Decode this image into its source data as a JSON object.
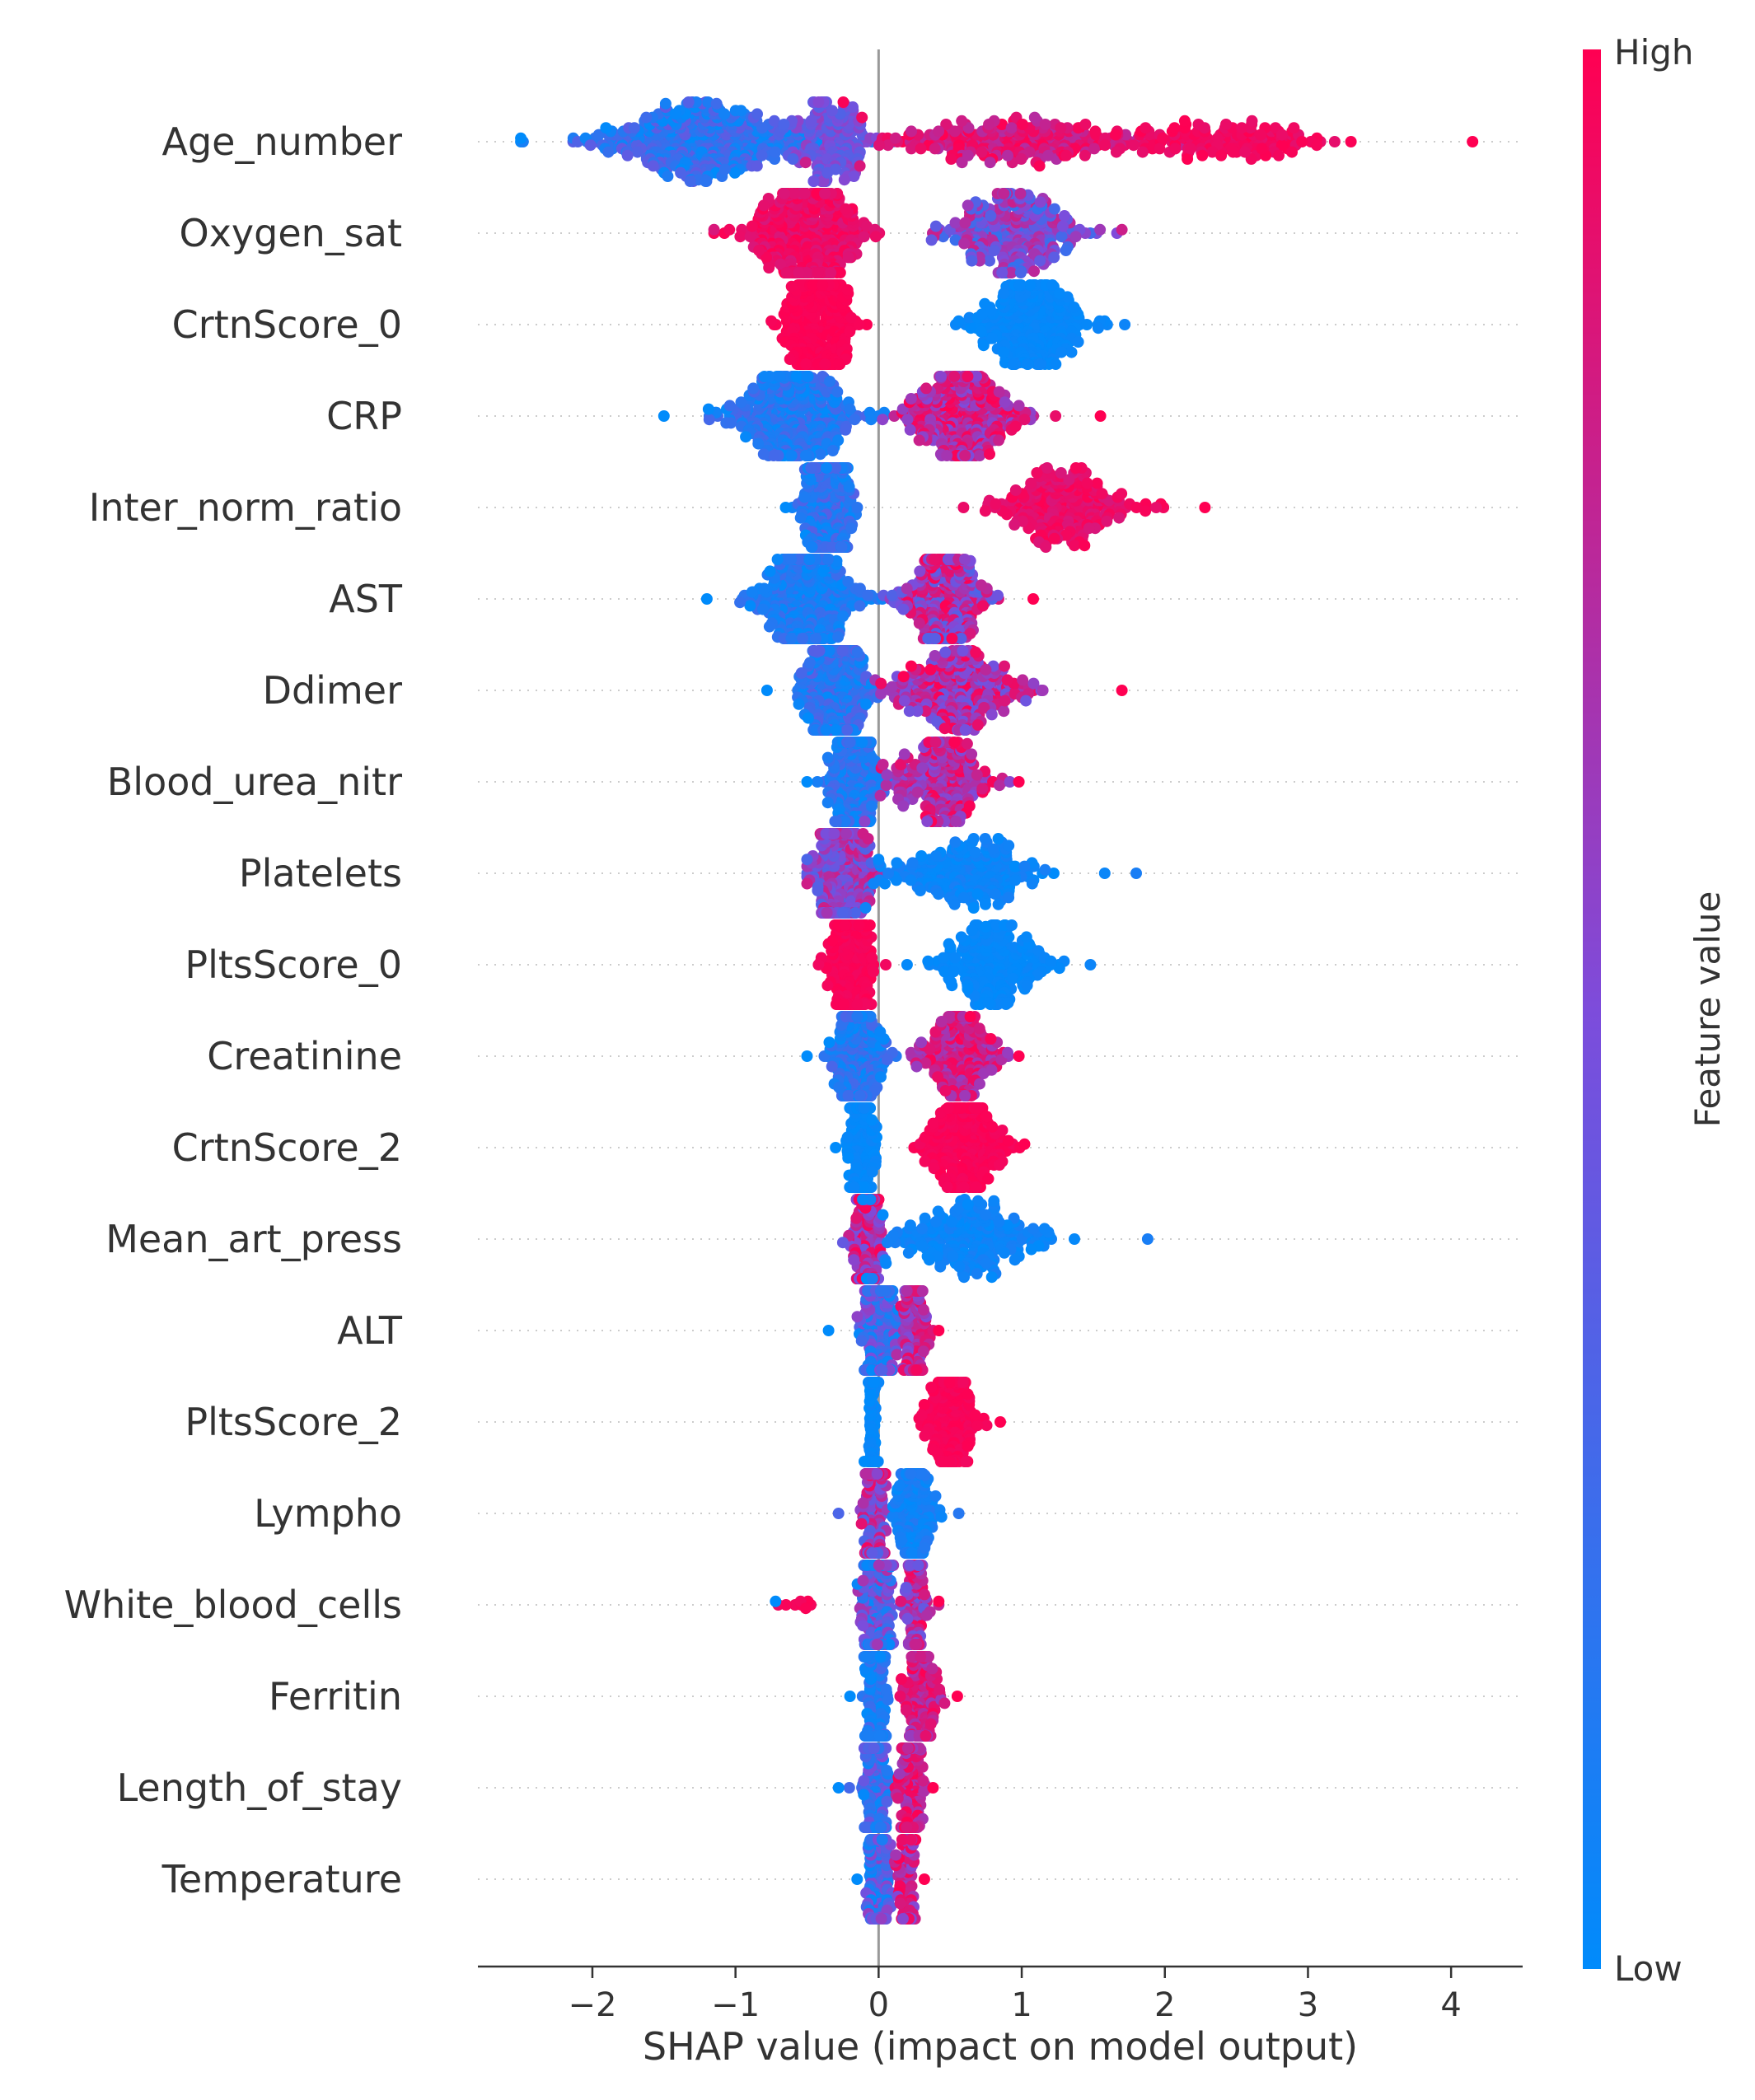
{
  "chart_data": {
    "type": "scatter",
    "subtype": "shap_beeswarm",
    "title": "",
    "xlabel": "SHAP value (impact on model output)",
    "ylabel": "",
    "xlim": [
      -2.8,
      4.5
    ],
    "xticks": [
      {
        "value": -2,
        "label": "−2"
      },
      {
        "value": -1,
        "label": "−1"
      },
      {
        "value": 0,
        "label": "0"
      },
      {
        "value": 1,
        "label": "1"
      },
      {
        "value": 2,
        "label": "2"
      },
      {
        "value": 3,
        "label": "3"
      },
      {
        "value": 4,
        "label": "4"
      }
    ],
    "colorbar": {
      "title": "Feature value",
      "high_label": "High",
      "low_label": "Low",
      "high_color": "#ff0052",
      "low_color": "#008bfb"
    },
    "features": [
      {
        "name": "Age_number",
        "min": -2.5,
        "max": 4.15,
        "clusters": [
          {
            "center": -1.2,
            "spread": 0.7,
            "count": 420,
            "value_low": 0.0,
            "value_high": 0.4
          },
          {
            "center": -0.35,
            "spread": 0.25,
            "count": 180,
            "value_low": 0.3,
            "value_high": 0.6
          },
          {
            "center": 0.9,
            "spread": 0.9,
            "count": 260,
            "value_low": 0.7,
            "value_high": 1.0
          },
          {
            "center": 2.4,
            "spread": 0.7,
            "count": 160,
            "value_low": 0.9,
            "value_high": 1.0
          }
        ]
      },
      {
        "name": "Oxygen_sat",
        "min": -1.15,
        "max": 1.7,
        "clusters": [
          {
            "center": -0.5,
            "spread": 0.35,
            "count": 420,
            "value_low": 0.85,
            "value_high": 1.0
          },
          {
            "center": 0.95,
            "spread": 0.4,
            "count": 300,
            "value_low": 0.2,
            "value_high": 0.8
          }
        ]
      },
      {
        "name": "CrtnScore_0",
        "min": -0.75,
        "max": 1.72,
        "clusters": [
          {
            "center": -0.42,
            "spread": 0.18,
            "count": 480,
            "value_low": 0.97,
            "value_high": 1.0
          },
          {
            "center": 1.05,
            "spread": 0.35,
            "count": 300,
            "value_low": 0.0,
            "value_high": 0.05
          }
        ]
      },
      {
        "name": "CRP",
        "min": -1.5,
        "max": 1.55,
        "clusters": [
          {
            "center": -0.6,
            "spread": 0.4,
            "count": 380,
            "value_low": 0.0,
            "value_high": 0.3
          },
          {
            "center": 0.6,
            "spread": 0.35,
            "count": 320,
            "value_low": 0.5,
            "value_high": 1.0
          }
        ]
      },
      {
        "name": "Inter_norm_ratio",
        "min": -0.65,
        "max": 2.28,
        "clusters": [
          {
            "center": -0.35,
            "spread": 0.15,
            "count": 380,
            "value_low": 0.0,
            "value_high": 0.35
          },
          {
            "center": 1.3,
            "spread": 0.45,
            "count": 260,
            "value_low": 0.85,
            "value_high": 1.0
          }
        ]
      },
      {
        "name": "AST",
        "min": -1.2,
        "max": 1.08,
        "clusters": [
          {
            "center": -0.5,
            "spread": 0.3,
            "count": 400,
            "value_low": 0.0,
            "value_high": 0.25
          },
          {
            "center": 0.45,
            "spread": 0.25,
            "count": 300,
            "value_low": 0.3,
            "value_high": 1.0
          }
        ]
      },
      {
        "name": "Ddimer",
        "min": -0.78,
        "max": 1.7,
        "clusters": [
          {
            "center": -0.3,
            "spread": 0.2,
            "count": 380,
            "value_low": 0.0,
            "value_high": 0.35
          },
          {
            "center": 0.55,
            "spread": 0.45,
            "count": 300,
            "value_low": 0.4,
            "value_high": 1.0
          }
        ]
      },
      {
        "name": "Blood_urea_nitr",
        "min": -0.5,
        "max": 0.98,
        "clusters": [
          {
            "center": -0.18,
            "spread": 0.15,
            "count": 380,
            "value_low": 0.0,
            "value_high": 0.3
          },
          {
            "center": 0.45,
            "spread": 0.3,
            "count": 260,
            "value_low": 0.5,
            "value_high": 1.0
          }
        ]
      },
      {
        "name": "Platelets",
        "min": -0.5,
        "max": 1.8,
        "clusters": [
          {
            "center": -0.25,
            "spread": 0.18,
            "count": 400,
            "value_low": 0.3,
            "value_high": 0.85
          },
          {
            "center": 0.6,
            "spread": 0.5,
            "count": 240,
            "value_low": 0.0,
            "value_high": 0.1
          }
        ]
      },
      {
        "name": "PltsScore_0",
        "min": -0.42,
        "max": 1.48,
        "clusters": [
          {
            "center": -0.2,
            "spread": 0.12,
            "count": 420,
            "value_low": 0.95,
            "value_high": 1.0
          },
          {
            "center": 0.8,
            "spread": 0.35,
            "count": 260,
            "value_low": 0.0,
            "value_high": 0.05
          }
        ]
      },
      {
        "name": "Creatinine",
        "min": -0.5,
        "max": 0.98,
        "clusters": [
          {
            "center": -0.15,
            "spread": 0.15,
            "count": 400,
            "value_low": 0.0,
            "value_high": 0.3
          },
          {
            "center": 0.55,
            "spread": 0.25,
            "count": 220,
            "value_low": 0.6,
            "value_high": 1.0
          }
        ]
      },
      {
        "name": "CrtnScore_2",
        "min": -0.3,
        "max": 1.02,
        "clusters": [
          {
            "center": -0.12,
            "spread": 0.07,
            "count": 380,
            "value_low": 0.0,
            "value_high": 0.05
          },
          {
            "center": 0.6,
            "spread": 0.25,
            "count": 280,
            "value_low": 0.95,
            "value_high": 1.0
          }
        ]
      },
      {
        "name": "Mean_art_press",
        "min": -0.25,
        "max": 1.88,
        "clusters": [
          {
            "center": -0.08,
            "spread": 0.08,
            "count": 380,
            "value_low": 0.4,
            "value_high": 1.0
          },
          {
            "center": 0.6,
            "spread": 0.5,
            "count": 260,
            "value_low": 0.0,
            "value_high": 0.1
          }
        ]
      },
      {
        "name": "ALT",
        "min": -0.35,
        "max": 0.42,
        "clusters": [
          {
            "center": 0.0,
            "spread": 0.1,
            "count": 420,
            "value_low": 0.0,
            "value_high": 0.6
          },
          {
            "center": 0.25,
            "spread": 0.08,
            "count": 160,
            "value_low": 0.5,
            "value_high": 1.0
          }
        ]
      },
      {
        "name": "PltsScore_2",
        "min": -0.1,
        "max": 0.85,
        "clusters": [
          {
            "center": -0.04,
            "spread": 0.02,
            "count": 420,
            "value_low": 0.0,
            "value_high": 0.05
          },
          {
            "center": 0.5,
            "spread": 0.18,
            "count": 200,
            "value_low": 0.95,
            "value_high": 1.0
          }
        ]
      },
      {
        "name": "Lympho",
        "min": -0.28,
        "max": 0.56,
        "clusters": [
          {
            "center": -0.03,
            "spread": 0.06,
            "count": 400,
            "value_low": 0.3,
            "value_high": 1.0
          },
          {
            "center": 0.25,
            "spread": 0.12,
            "count": 200,
            "value_low": 0.0,
            "value_high": 0.15
          }
        ]
      },
      {
        "name": "White_blood_cells",
        "min": -0.72,
        "max": 0.42,
        "clusters": [
          {
            "center": -0.02,
            "spread": 0.08,
            "count": 420,
            "value_low": 0.0,
            "value_high": 0.7
          },
          {
            "center": 0.25,
            "spread": 0.08,
            "count": 100,
            "value_low": 0.4,
            "value_high": 1.0
          },
          {
            "center": -0.55,
            "spread": 0.1,
            "count": 8,
            "value_low": 0.95,
            "value_high": 1.0
          }
        ]
      },
      {
        "name": "Ferritin",
        "min": -0.2,
        "max": 0.55,
        "clusters": [
          {
            "center": -0.02,
            "spread": 0.06,
            "count": 420,
            "value_low": 0.0,
            "value_high": 0.3
          },
          {
            "center": 0.3,
            "spread": 0.1,
            "count": 160,
            "value_low": 0.6,
            "value_high": 1.0
          }
        ]
      },
      {
        "name": "Length_of_stay",
        "min": -0.28,
        "max": 0.38,
        "clusters": [
          {
            "center": -0.02,
            "spread": 0.07,
            "count": 420,
            "value_low": 0.0,
            "value_high": 0.5
          },
          {
            "center": 0.22,
            "spread": 0.08,
            "count": 140,
            "value_low": 0.6,
            "value_high": 1.0
          }
        ]
      },
      {
        "name": "Temperature",
        "min": -0.15,
        "max": 0.32,
        "clusters": [
          {
            "center": 0.0,
            "spread": 0.06,
            "count": 420,
            "value_low": 0.0,
            "value_high": 0.6
          },
          {
            "center": 0.2,
            "spread": 0.06,
            "count": 120,
            "value_low": 0.5,
            "value_high": 1.0
          }
        ]
      }
    ]
  }
}
